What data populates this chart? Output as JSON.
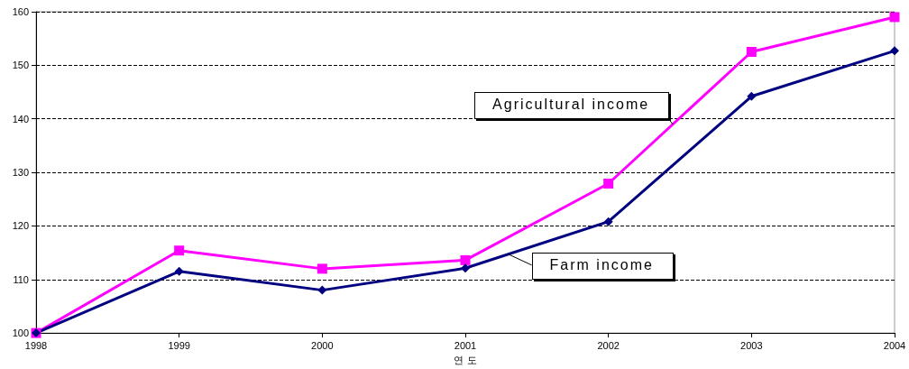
{
  "chart_data": {
    "type": "line",
    "xlabel": "연 도",
    "categories": [
      "1998",
      "1999",
      "2000",
      "2001",
      "2002",
      "2003",
      "2004"
    ],
    "series": [
      {
        "name": "Agricultural income",
        "color": "#ff00ff",
        "marker": "square",
        "values": [
          100,
          115.4,
          112.0,
          113.6,
          127.9,
          152.5,
          159.0
        ]
      },
      {
        "name": "Farm income",
        "color": "#000080",
        "marker": "diamond",
        "values": [
          100,
          111.5,
          108.0,
          112.1,
          120.8,
          144.2,
          152.7
        ]
      }
    ],
    "ylim": [
      100,
      160
    ],
    "yticks": [
      100,
      110,
      120,
      130,
      140,
      150,
      160
    ],
    "grid": "y",
    "legend": false,
    "line_style": "solid"
  }
}
